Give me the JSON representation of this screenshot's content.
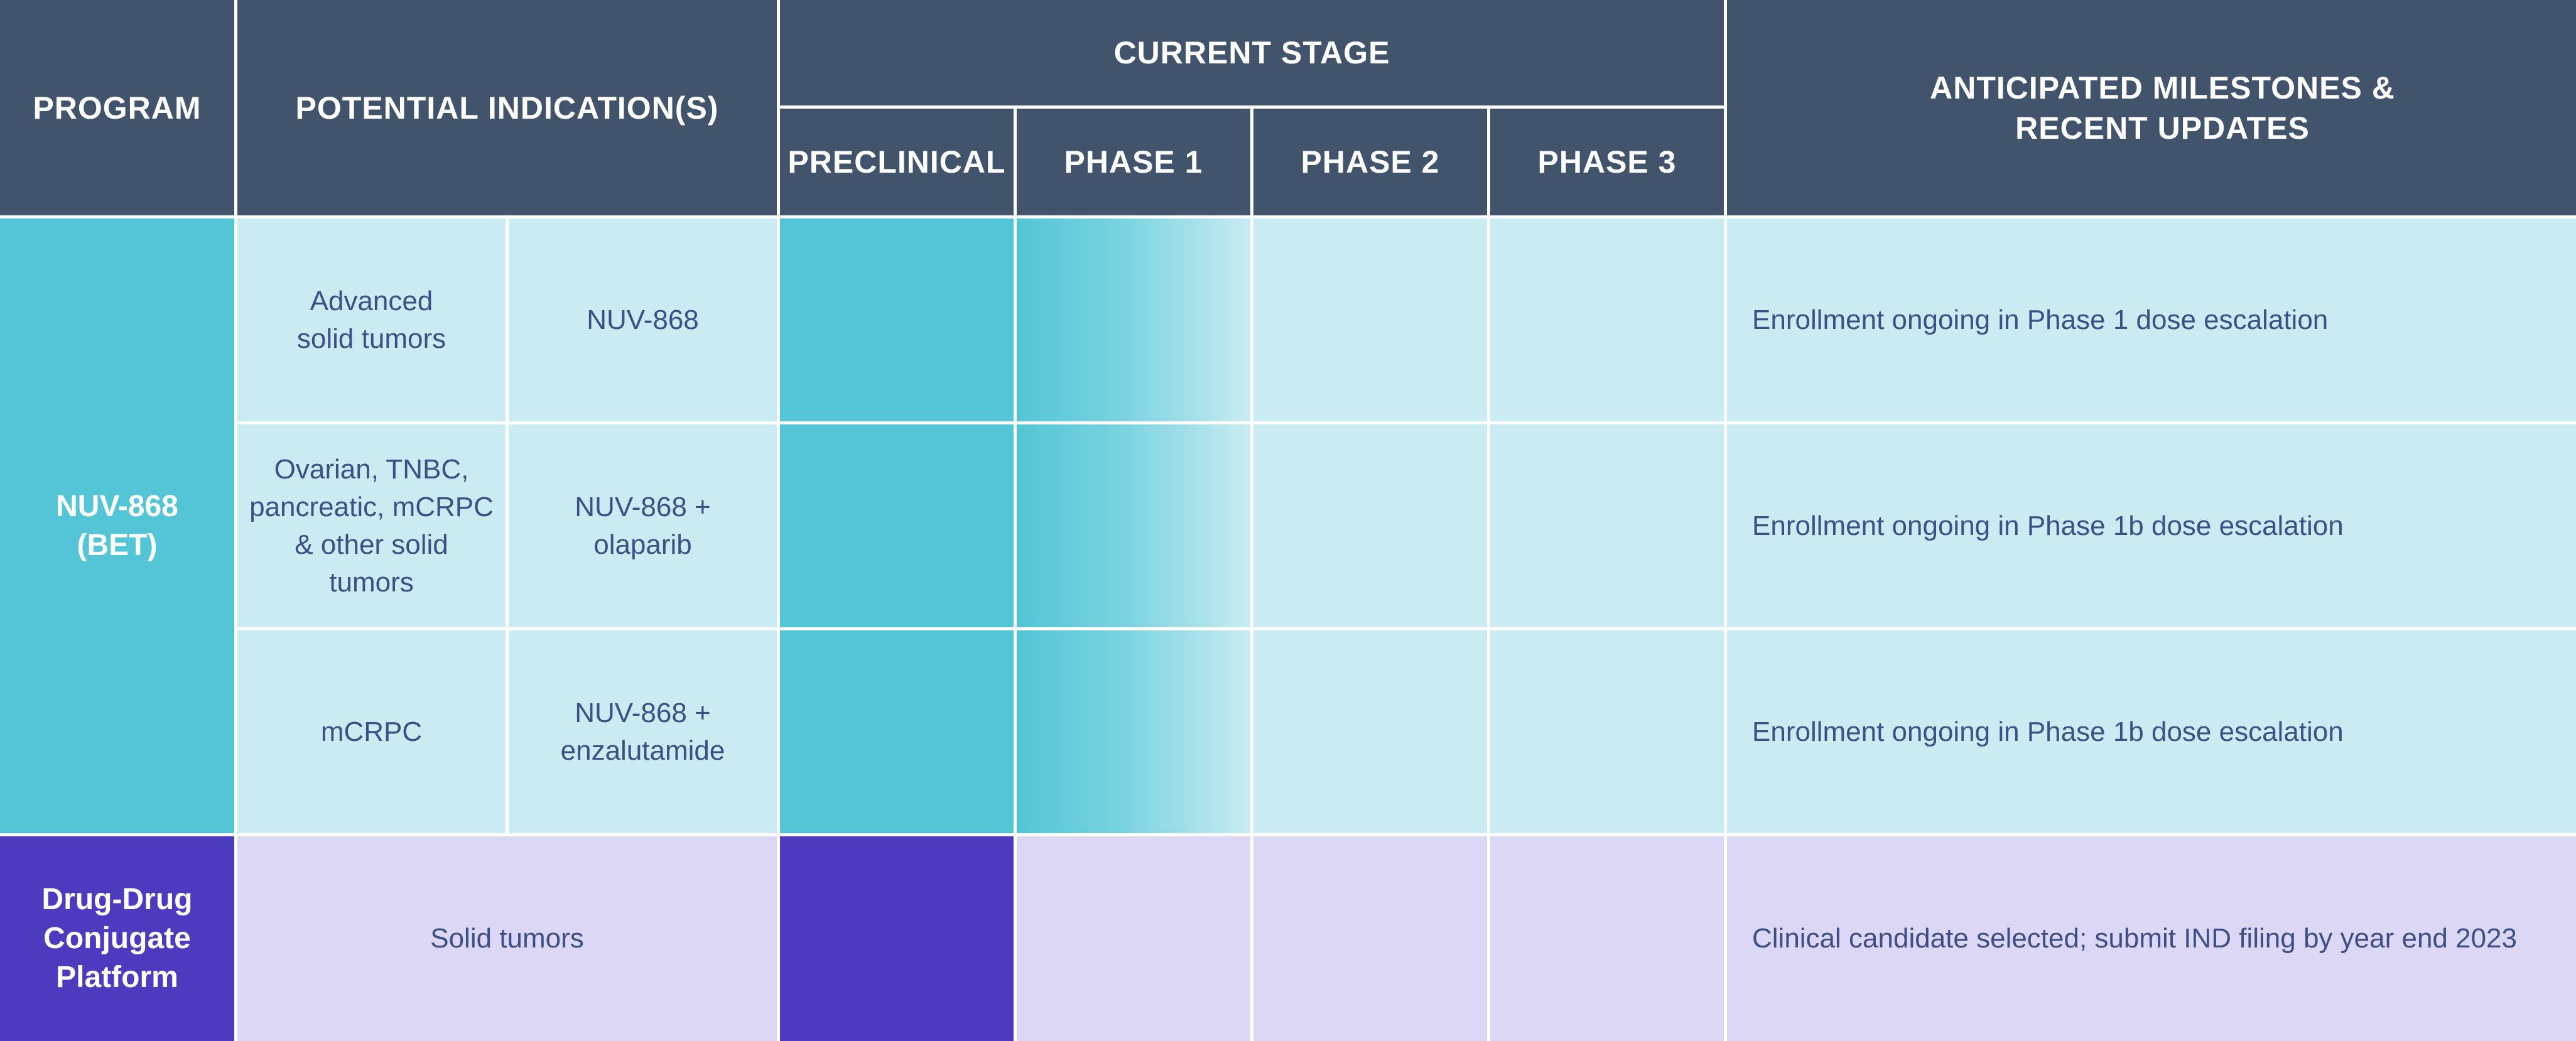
{
  "header": {
    "program": "PROGRAM",
    "indications": "POTENTIAL INDICATION(S)",
    "current_stage": "CURRENT STAGE",
    "milestones": "ANTICIPATED MILESTONES &\nRECENT UPDATES",
    "stages": [
      "PRECLINICAL",
      "PHASE 1",
      "PHASE 2",
      "PHASE 3"
    ]
  },
  "programs": [
    {
      "name": "NUV-868\n(BET)",
      "color": "#54c5d6",
      "rows": [
        {
          "indication": "Advanced\nsolid tumors",
          "regimen": "NUV-868",
          "milestone": "Enrollment ongoing in Phase 1 dose escalation"
        },
        {
          "indication": "Ovarian, TNBC,\npancreatic, mCRPC\n& other solid\ntumors",
          "regimen": "NUV-868 +\nolaparib",
          "milestone": "Enrollment ongoing in Phase 1b dose escalation"
        },
        {
          "indication": "mCRPC",
          "regimen": "NUV-868 +\nenzalutamide",
          "milestone": "Enrollment ongoing in Phase 1b dose escalation"
        }
      ]
    },
    {
      "name": "Drug-Drug\nConjugate\nPlatform",
      "color": "#4d3bbf",
      "rows": [
        {
          "indication": "Solid tumors",
          "milestone": "Clinical candidate selected; submit IND filing by year end 2023"
        }
      ]
    }
  ],
  "colors": {
    "header_bg": "#42546c",
    "teal": "#54c5d6",
    "light_teal": "#c9ebf1",
    "purple": "#4d3bbf",
    "light_purple": "#dcd7f4",
    "body_text": "#3d4f86"
  }
}
